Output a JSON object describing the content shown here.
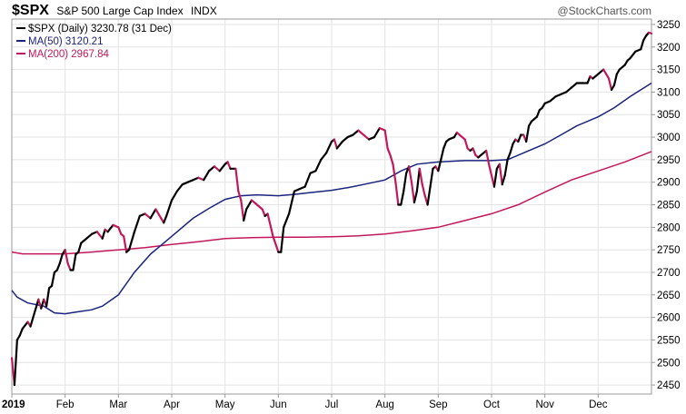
{
  "header": {
    "symbol": "$SPX",
    "name": "S&P 500 Large Cap Index",
    "exchange": "INDX",
    "brand": "@StockCharts.com"
  },
  "legend": [
    {
      "label": "$SPX (Daily) 3230.78 (31 Dec)",
      "color": "#000000"
    },
    {
      "label": "MA(50) 3120.21",
      "color": "#1a237e"
    },
    {
      "label": "MA(200) 2967.84",
      "color": "#c2185b"
    }
  ],
  "chart_data": {
    "type": "line",
    "y_range": [
      2430,
      3262
    ],
    "y_ticks": [
      2450,
      2500,
      2550,
      2600,
      2650,
      2700,
      2750,
      2800,
      2850,
      2900,
      2950,
      3000,
      3050,
      3100,
      3150,
      3200,
      3250
    ],
    "x_range": [
      0,
      12
    ],
    "x_ticks": [
      {
        "label": "2019",
        "m": 0.0,
        "bold": true
      },
      {
        "label": "Feb",
        "m": 1.0
      },
      {
        "label": "Mar",
        "m": 2.0
      },
      {
        "label": "Apr",
        "m": 3.0
      },
      {
        "label": "May",
        "m": 4.0
      },
      {
        "label": "Jun",
        "m": 5.0
      },
      {
        "label": "Jul",
        "m": 6.0
      },
      {
        "label": "Aug",
        "m": 7.0
      },
      {
        "label": "Sep",
        "m": 8.0
      },
      {
        "label": "Oct",
        "m": 9.0
      },
      {
        "label": "Nov",
        "m": 10.0
      },
      {
        "label": "Dec",
        "m": 11.0
      }
    ],
    "grid": true,
    "up_color": "#000000",
    "down_color": "#c2185b",
    "series": [
      {
        "name": "$SPX (Daily)",
        "points": [
          [
            0.0,
            2510
          ],
          [
            0.05,
            2450
          ],
          [
            0.1,
            2550
          ],
          [
            0.15,
            2560
          ],
          [
            0.2,
            2575
          ],
          [
            0.3,
            2590
          ],
          [
            0.35,
            2580
          ],
          [
            0.4,
            2600
          ],
          [
            0.5,
            2640
          ],
          [
            0.55,
            2620
          ],
          [
            0.6,
            2640
          ],
          [
            0.65,
            2625
          ],
          [
            0.7,
            2665
          ],
          [
            0.75,
            2670
          ],
          [
            0.8,
            2700
          ],
          [
            0.85,
            2705
          ],
          [
            0.9,
            2720
          ],
          [
            0.95,
            2740
          ],
          [
            1.0,
            2750
          ],
          [
            1.05,
            2720
          ],
          [
            1.1,
            2705
          ],
          [
            1.15,
            2705
          ],
          [
            1.2,
            2740
          ],
          [
            1.25,
            2745
          ],
          [
            1.3,
            2765
          ],
          [
            1.35,
            2770
          ],
          [
            1.4,
            2775
          ],
          [
            1.5,
            2785
          ],
          [
            1.6,
            2790
          ],
          [
            1.7,
            2775
          ],
          [
            1.75,
            2795
          ],
          [
            1.8,
            2790
          ],
          [
            1.9,
            2805
          ],
          [
            2.0,
            2800
          ],
          [
            2.05,
            2785
          ],
          [
            2.1,
            2780
          ],
          [
            2.15,
            2745
          ],
          [
            2.2,
            2750
          ],
          [
            2.3,
            2790
          ],
          [
            2.4,
            2825
          ],
          [
            2.5,
            2830
          ],
          [
            2.6,
            2820
          ],
          [
            2.7,
            2840
          ],
          [
            2.8,
            2820
          ],
          [
            2.85,
            2810
          ],
          [
            2.9,
            2825
          ],
          [
            3.0,
            2860
          ],
          [
            3.1,
            2880
          ],
          [
            3.2,
            2895
          ],
          [
            3.3,
            2900
          ],
          [
            3.4,
            2905
          ],
          [
            3.5,
            2910
          ],
          [
            3.6,
            2905
          ],
          [
            3.7,
            2925
          ],
          [
            3.75,
            2930
          ],
          [
            3.8,
            2935
          ],
          [
            3.9,
            2925
          ],
          [
            4.0,
            2940
          ],
          [
            4.05,
            2945
          ],
          [
            4.1,
            2930
          ],
          [
            4.2,
            2930
          ],
          [
            4.25,
            2880
          ],
          [
            4.3,
            2860
          ],
          [
            4.35,
            2815
          ],
          [
            4.4,
            2840
          ],
          [
            4.5,
            2860
          ],
          [
            4.6,
            2850
          ],
          [
            4.7,
            2840
          ],
          [
            4.75,
            2825
          ],
          [
            4.8,
            2830
          ],
          [
            4.9,
            2780
          ],
          [
            5.0,
            2745
          ],
          [
            5.05,
            2745
          ],
          [
            5.1,
            2800
          ],
          [
            5.2,
            2830
          ],
          [
            5.3,
            2880
          ],
          [
            5.4,
            2885
          ],
          [
            5.5,
            2890
          ],
          [
            5.6,
            2920
          ],
          [
            5.7,
            2925
          ],
          [
            5.8,
            2950
          ],
          [
            5.9,
            2965
          ],
          [
            6.0,
            2990
          ],
          [
            6.05,
            2995
          ],
          [
            6.1,
            2975
          ],
          [
            6.2,
            2990
          ],
          [
            6.3,
            3000
          ],
          [
            6.4,
            3005
          ],
          [
            6.5,
            3015
          ],
          [
            6.6,
            3005
          ],
          [
            6.7,
            2995
          ],
          [
            6.8,
            3000
          ],
          [
            6.9,
            3020
          ],
          [
            7.0,
            3015
          ],
          [
            7.05,
            2975
          ],
          [
            7.1,
            2960
          ],
          [
            7.15,
            2940
          ],
          [
            7.2,
            2900
          ],
          [
            7.25,
            2850
          ],
          [
            7.3,
            2850
          ],
          [
            7.35,
            2880
          ],
          [
            7.4,
            2920
          ],
          [
            7.45,
            2935
          ],
          [
            7.5,
            2900
          ],
          [
            7.55,
            2855
          ],
          [
            7.6,
            2880
          ],
          [
            7.65,
            2930
          ],
          [
            7.7,
            2895
          ],
          [
            7.75,
            2870
          ],
          [
            7.8,
            2850
          ],
          [
            7.85,
            2890
          ],
          [
            7.9,
            2930
          ],
          [
            7.95,
            2935
          ],
          [
            8.0,
            2925
          ],
          [
            8.05,
            2950
          ],
          [
            8.1,
            2975
          ],
          [
            8.15,
            2990
          ],
          [
            8.2,
            2995
          ],
          [
            8.3,
            3000
          ],
          [
            8.35,
            3010
          ],
          [
            8.4,
            3005
          ],
          [
            8.5,
            2995
          ],
          [
            8.55,
            2975
          ],
          [
            8.6,
            2970
          ],
          [
            8.65,
            2975
          ],
          [
            8.7,
            2960
          ],
          [
            8.75,
            2955
          ],
          [
            8.8,
            2960
          ],
          [
            8.9,
            2970
          ],
          [
            8.95,
            2940
          ],
          [
            9.0,
            2915
          ],
          [
            9.05,
            2890
          ],
          [
            9.1,
            2930
          ],
          [
            9.15,
            2940
          ],
          [
            9.2,
            2895
          ],
          [
            9.25,
            2915
          ],
          [
            9.3,
            2950
          ],
          [
            9.35,
            2965
          ],
          [
            9.4,
            2985
          ],
          [
            9.45,
            2995
          ],
          [
            9.5,
            2990
          ],
          [
            9.55,
            3005
          ],
          [
            9.6,
            3005
          ],
          [
            9.65,
            2990
          ],
          [
            9.7,
            3025
          ],
          [
            9.75,
            3035
          ],
          [
            9.8,
            3040
          ],
          [
            9.85,
            3045
          ],
          [
            9.9,
            3060
          ],
          [
            9.95,
            3065
          ],
          [
            10.0,
            3075
          ],
          [
            10.1,
            3080
          ],
          [
            10.2,
            3090
          ],
          [
            10.3,
            3095
          ],
          [
            10.4,
            3100
          ],
          [
            10.5,
            3110
          ],
          [
            10.6,
            3120
          ],
          [
            10.7,
            3120
          ],
          [
            10.8,
            3120
          ],
          [
            10.85,
            3135
          ],
          [
            10.9,
            3130
          ],
          [
            11.0,
            3140
          ],
          [
            11.1,
            3150
          ],
          [
            11.15,
            3140
          ],
          [
            11.2,
            3130
          ],
          [
            11.25,
            3105
          ],
          [
            11.3,
            3115
          ],
          [
            11.35,
            3140
          ],
          [
            11.4,
            3150
          ],
          [
            11.5,
            3160
          ],
          [
            11.55,
            3170
          ],
          [
            11.6,
            3175
          ],
          [
            11.7,
            3190
          ],
          [
            11.8,
            3195
          ],
          [
            11.85,
            3215
          ],
          [
            11.9,
            3225
          ],
          [
            11.95,
            3232
          ],
          [
            12.0,
            3230
          ]
        ]
      },
      {
        "name": "MA(50)",
        "color": "#1a237e",
        "points": [
          [
            0.0,
            2660
          ],
          [
            0.1,
            2645
          ],
          [
            0.3,
            2632
          ],
          [
            0.6,
            2625
          ],
          [
            0.8,
            2610
          ],
          [
            1.0,
            2608
          ],
          [
            1.2,
            2612
          ],
          [
            1.5,
            2617
          ],
          [
            1.7,
            2625
          ],
          [
            2.0,
            2650
          ],
          [
            2.3,
            2700
          ],
          [
            2.6,
            2740
          ],
          [
            3.0,
            2780
          ],
          [
            3.4,
            2820
          ],
          [
            3.7,
            2842
          ],
          [
            4.0,
            2862
          ],
          [
            4.3,
            2870
          ],
          [
            4.6,
            2872
          ],
          [
            5.0,
            2870
          ],
          [
            5.3,
            2873
          ],
          [
            5.6,
            2877
          ],
          [
            6.0,
            2882
          ],
          [
            6.3,
            2888
          ],
          [
            6.6,
            2895
          ],
          [
            7.0,
            2905
          ],
          [
            7.3,
            2925
          ],
          [
            7.6,
            2940
          ],
          [
            8.0,
            2945
          ],
          [
            8.5,
            2948
          ],
          [
            9.0,
            2948
          ],
          [
            9.3,
            2950
          ],
          [
            9.6,
            2965
          ],
          [
            10.0,
            2985
          ],
          [
            10.3,
            3005
          ],
          [
            10.6,
            3025
          ],
          [
            11.0,
            3045
          ],
          [
            11.3,
            3065
          ],
          [
            11.6,
            3090
          ],
          [
            12.0,
            3120
          ]
        ]
      },
      {
        "name": "MA(200)",
        "color": "#c2185b",
        "points": [
          [
            0.0,
            2745
          ],
          [
            0.2,
            2741
          ],
          [
            0.5,
            2741
          ],
          [
            1.0,
            2741
          ],
          [
            1.5,
            2745
          ],
          [
            2.0,
            2750
          ],
          [
            2.5,
            2755
          ],
          [
            3.0,
            2762
          ],
          [
            3.5,
            2768
          ],
          [
            4.0,
            2775
          ],
          [
            4.5,
            2777
          ],
          [
            5.0,
            2778
          ],
          [
            5.5,
            2778
          ],
          [
            6.0,
            2779
          ],
          [
            6.5,
            2781
          ],
          [
            7.0,
            2785
          ],
          [
            7.5,
            2792
          ],
          [
            8.0,
            2800
          ],
          [
            8.5,
            2815
          ],
          [
            9.0,
            2830
          ],
          [
            9.5,
            2850
          ],
          [
            10.0,
            2878
          ],
          [
            10.5,
            2905
          ],
          [
            11.0,
            2925
          ],
          [
            11.5,
            2945
          ],
          [
            12.0,
            2968
          ]
        ]
      }
    ]
  }
}
